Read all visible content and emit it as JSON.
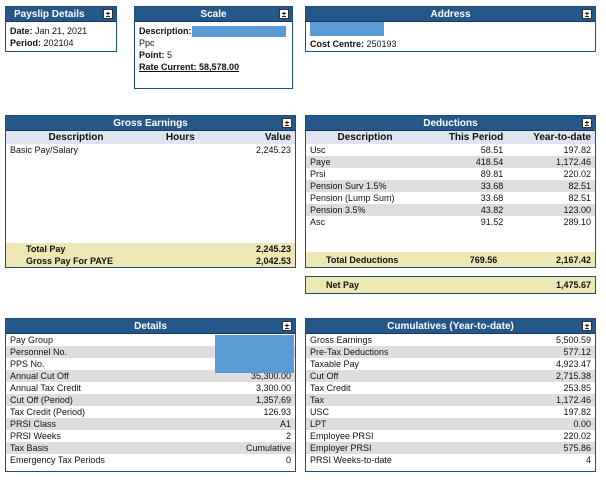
{
  "payslip": {
    "title": "Payslip Details",
    "date_label": "Date:",
    "date_value": "Jan 21, 2021",
    "period_label": "Period:",
    "period_value": "202104"
  },
  "scale": {
    "title": "Scale",
    "description_label": "Description:",
    "description_value": "Ppc",
    "point_label": "Point:",
    "point_value": "5",
    "rate_label": "Rate Current:",
    "rate_value": "58,578.00"
  },
  "address": {
    "title": "Address",
    "cost_centre_label": "Cost Centre:",
    "cost_centre_value": "250193"
  },
  "gross_earnings": {
    "title": "Gross Earnings",
    "headers": [
      "Description",
      "Hours",
      "Value"
    ],
    "rows": [
      {
        "description": "Basic Pay/Salary",
        "hours": "",
        "value": "2,245.23"
      }
    ],
    "total_pay_label": "Total Pay",
    "total_pay_value": "2,245.23",
    "gross_paye_label": "Gross Pay For PAYE",
    "gross_paye_value": "2,042.53"
  },
  "deductions": {
    "title": "Deductions",
    "headers": [
      "Description",
      "This Period",
      "Year-to-date"
    ],
    "rows": [
      {
        "description": "Usc",
        "period": "58.51",
        "ytd": "197.82"
      },
      {
        "description": "Paye",
        "period": "418.54",
        "ytd": "1,172.46"
      },
      {
        "description": "Prsi",
        "period": "89.81",
        "ytd": "220.02"
      },
      {
        "description": "Pension Surv 1.5%",
        "period": "33.68",
        "ytd": "82.51"
      },
      {
        "description": "Pension (Lump Sum)",
        "period": "33.68",
        "ytd": "82.51"
      },
      {
        "description": "Pension 3.5%",
        "period": "43.82",
        "ytd": "123.00"
      },
      {
        "description": "Asc",
        "period": "91.52",
        "ytd": "289.10"
      }
    ],
    "total_label": "Total Deductions",
    "total_period": "769.56",
    "total_ytd": "2,167.42"
  },
  "net_pay": {
    "label": "Net Pay",
    "value": "1,475.67"
  },
  "details": {
    "title": "Details",
    "rows": [
      {
        "label": "Pay Group",
        "value": ""
      },
      {
        "label": "Personnel No.",
        "value": ""
      },
      {
        "label": "PPS No.",
        "value": ""
      },
      {
        "label": "Annual Cut Off",
        "value": "35,300.00"
      },
      {
        "label": "Annual Tax Credit",
        "value": "3,300.00"
      },
      {
        "label": "Cut Off (Period)",
        "value": "1,357.69"
      },
      {
        "label": "Tax Credit (Period)",
        "value": "126.93"
      },
      {
        "label": "PRSI Class",
        "value": "A1"
      },
      {
        "label": "PRSI Weeks",
        "value": "2"
      },
      {
        "label": "Tax Basis",
        "value": "Cumulative"
      },
      {
        "label": "Emergency Tax Periods",
        "value": "0"
      }
    ]
  },
  "cumulatives": {
    "title": "Cumulatives (Year-to-date)",
    "rows": [
      {
        "label": "Gross Earnings",
        "value": "5,500.59"
      },
      {
        "label": "Pre-Tax Deductions",
        "value": "577.12"
      },
      {
        "label": "Taxable Pay",
        "value": "4,923.47"
      },
      {
        "label": "Cut Off",
        "value": "2,715.38"
      },
      {
        "label": "Tax Credit",
        "value": "253.85"
      },
      {
        "label": "Tax",
        "value": "1,172.46"
      },
      {
        "label": "USC",
        "value": "197.82"
      },
      {
        "label": "LPT",
        "value": "0.00"
      },
      {
        "label": "Employee PRSI",
        "value": "220.02"
      },
      {
        "label": "Employer PRSI",
        "value": "575.86"
      },
      {
        "label": "PRSI Weeks-to-date",
        "value": "4"
      }
    ]
  },
  "icons": {
    "export": "export-icon",
    "export_glyph": "±"
  },
  "colors": {
    "header_bg": "#26578a",
    "row_shade": "#dedede",
    "total_bg": "#efe7b3",
    "redaction": "#5b9bd5"
  }
}
